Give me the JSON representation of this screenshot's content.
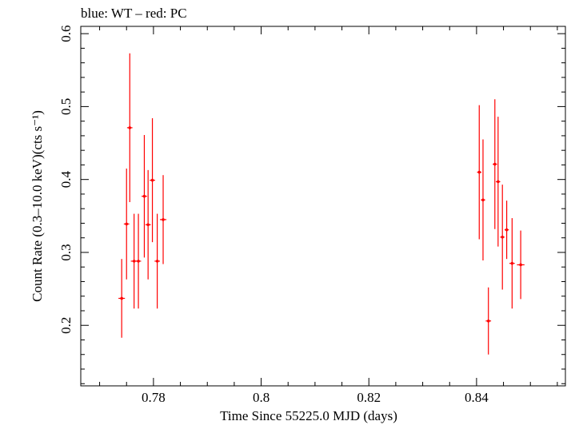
{
  "chart_data": {
    "type": "scatter",
    "title": "blue: WT – red: PC",
    "xlabel": "Time Since 55225.0 MJD (days)",
    "ylabel": "Count Rate (0.3–10.0 keV)(cts s⁻¹)",
    "xlim": [
      0.7665,
      0.8565
    ],
    "ylim": [
      0.117,
      0.61
    ],
    "x_ticks": [
      0.78,
      0.8,
      0.82,
      0.84
    ],
    "x_tick_labels": [
      "0.78",
      "0.8",
      "0.82",
      "0.84"
    ],
    "y_ticks": [
      0.2,
      0.3,
      0.4,
      0.5,
      0.6
    ],
    "y_tick_labels": [
      "0.2",
      "0.3",
      "0.4",
      "0.5",
      "0.6"
    ],
    "grid": false,
    "series": [
      {
        "name": "PC",
        "color": "#ff0000",
        "points": [
          {
            "x": 0.7741,
            "xerr": 0.0006,
            "y": 0.237,
            "yerr": 0.054
          },
          {
            "x": 0.775,
            "xerr": 0.0005,
            "y": 0.339,
            "yerr": 0.076
          },
          {
            "x": 0.7756,
            "xerr": 0.0005,
            "y": 0.471,
            "yerr": 0.102
          },
          {
            "x": 0.7764,
            "xerr": 0.0006,
            "y": 0.288,
            "yerr": 0.065
          },
          {
            "x": 0.7772,
            "xerr": 0.0005,
            "y": 0.288,
            "yerr": 0.065
          },
          {
            "x": 0.7783,
            "xerr": 0.0005,
            "y": 0.377,
            "yerr": 0.084
          },
          {
            "x": 0.779,
            "xerr": 0.0005,
            "y": 0.338,
            "yerr": 0.075
          },
          {
            "x": 0.7798,
            "xerr": 0.0005,
            "y": 0.399,
            "yerr": 0.085
          },
          {
            "x": 0.7807,
            "xerr": 0.0005,
            "y": 0.288,
            "yerr": 0.065
          },
          {
            "x": 0.7818,
            "xerr": 0.0006,
            "y": 0.345,
            "yerr": 0.061
          },
          {
            "x": 0.8405,
            "xerr": 0.0004,
            "y": 0.41,
            "yerr": 0.092
          },
          {
            "x": 0.8412,
            "xerr": 0.0004,
            "y": 0.372,
            "yerr": 0.083
          },
          {
            "x": 0.8422,
            "xerr": 0.0005,
            "y": 0.206,
            "yerr": 0.046
          },
          {
            "x": 0.8434,
            "xerr": 0.0004,
            "y": 0.421,
            "yerr": 0.089
          },
          {
            "x": 0.844,
            "xerr": 0.0004,
            "y": 0.397,
            "yerr": 0.089
          },
          {
            "x": 0.8448,
            "xerr": 0.0004,
            "y": 0.321,
            "yerr": 0.072
          },
          {
            "x": 0.8456,
            "xerr": 0.0004,
            "y": 0.331,
            "yerr": 0.04
          },
          {
            "x": 0.8466,
            "xerr": 0.0005,
            "y": 0.285,
            "yerr": 0.062
          },
          {
            "x": 0.8482,
            "xerr": 0.0007,
            "y": 0.283,
            "yerr": 0.047
          }
        ]
      }
    ]
  }
}
